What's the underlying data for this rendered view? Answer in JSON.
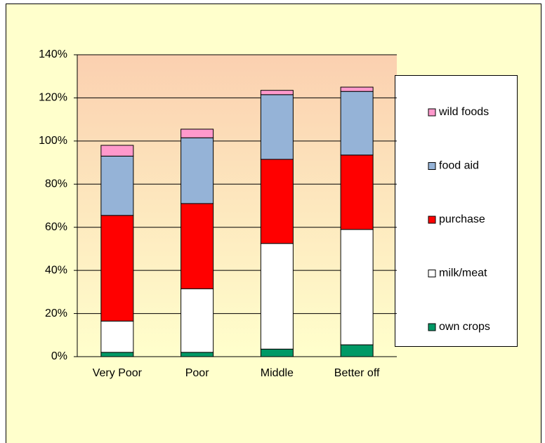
{
  "chart_data": {
    "type": "stacked_bar",
    "categories": [
      "Very Poor",
      "Poor",
      "Middle",
      "Better off"
    ],
    "series": [
      {
        "name": "own crops",
        "color": "#009966",
        "values": [
          2,
          2,
          3.5,
          5.5
        ]
      },
      {
        "name": "milk/meat",
        "color": "#ffffff",
        "values": [
          14.5,
          29.5,
          49,
          53.5
        ]
      },
      {
        "name": "purchase",
        "color": "#ff0000",
        "values": [
          49,
          39.5,
          39,
          34.5
        ]
      },
      {
        "name": "food aid",
        "color": "#95b3d7",
        "values": [
          27.5,
          30.5,
          30,
          29.5
        ]
      },
      {
        "name": "wild foods",
        "color": "#ff99cc",
        "values": [
          5,
          4,
          2,
          2
        ]
      }
    ],
    "ylim": [
      0,
      140
    ],
    "yticks": [
      {
        "value": 0,
        "label": "0%"
      },
      {
        "value": 20,
        "label": "20%"
      },
      {
        "value": 40,
        "label": "40%"
      },
      {
        "value": 60,
        "label": "60%"
      },
      {
        "value": 80,
        "label": "80%"
      },
      {
        "value": 100,
        "label": "100%"
      },
      {
        "value": 120,
        "label": "120%"
      },
      {
        "value": 140,
        "label": "140%"
      }
    ],
    "grid": true,
    "legend": "right"
  }
}
